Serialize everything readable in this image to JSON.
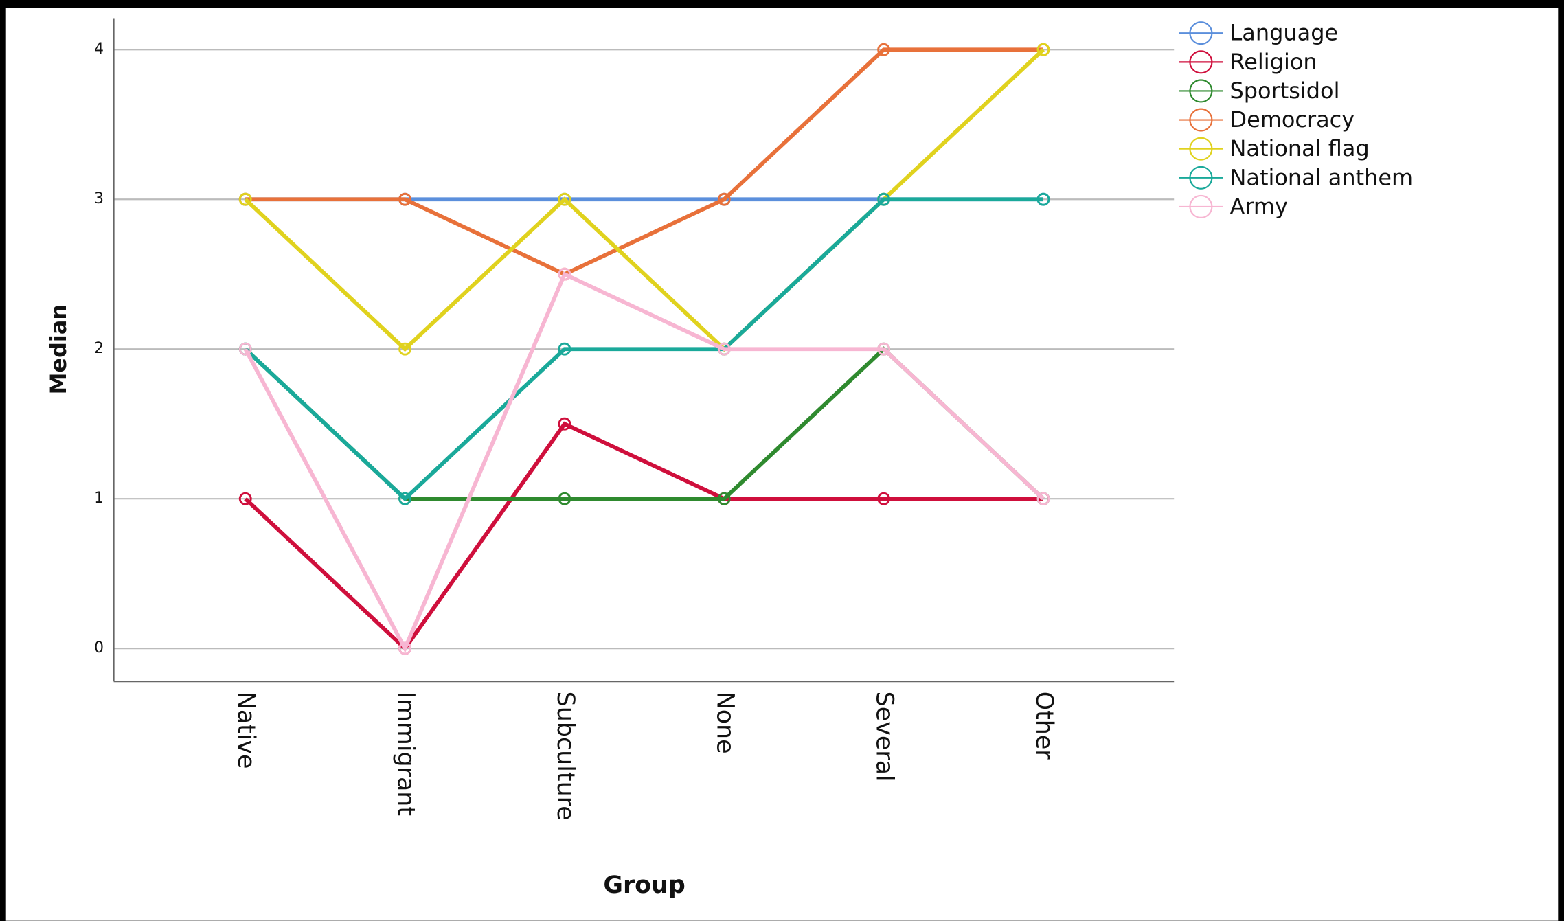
{
  "chart_data": {
    "type": "line",
    "x_label": "Group",
    "y_label": "Median",
    "categories": [
      "Native",
      "Immigrant",
      "Subculture",
      "None",
      "Several",
      "Other"
    ],
    "series": [
      {
        "name": "Language",
        "color": "#5b8fdc",
        "values": [
          3,
          3,
          3,
          3,
          3,
          3
        ]
      },
      {
        "name": "Religion",
        "color": "#cf0f3c",
        "values": [
          1,
          0,
          1.5,
          1,
          1,
          1
        ]
      },
      {
        "name": "Sportsidol",
        "color": "#2f8a2f",
        "values": [
          2,
          1,
          1,
          1,
          2,
          1
        ]
      },
      {
        "name": "Democracy",
        "color": "#e8713a",
        "values": [
          3,
          3,
          2.5,
          3,
          4,
          4
        ]
      },
      {
        "name": "National flag",
        "color": "#e0d21e",
        "values": [
          3,
          2,
          3,
          2,
          3,
          4
        ]
      },
      {
        "name": "National anthem",
        "color": "#1aa99a",
        "values": [
          2,
          1,
          2,
          2,
          3,
          3
        ]
      },
      {
        "name": "Army",
        "color": "#f7b6d2",
        "values": [
          2,
          0,
          2.5,
          2,
          2,
          1
        ]
      }
    ],
    "ylim": [
      -0.22,
      4.21
    ],
    "yticks": [
      0,
      1,
      2,
      3,
      4
    ],
    "grid": true,
    "legend": "top-right"
  }
}
